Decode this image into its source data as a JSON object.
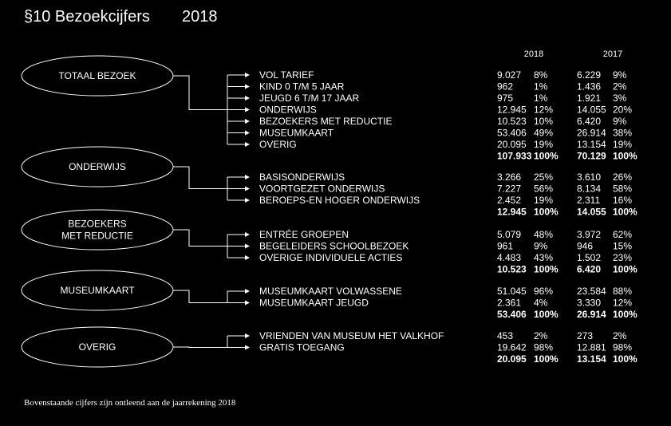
{
  "title": "§10 Bezoekcijfers",
  "year": "2018",
  "columns": {
    "current": "2018",
    "previous": "2017"
  },
  "groups": [
    {
      "label_lines": [
        "TOTAAL BEZOEK"
      ],
      "rows": [
        {
          "label": "VOL TARIEF",
          "v2018": "9.027",
          "p2018": "8%",
          "v2017": "6.229",
          "p2017": "9%"
        },
        {
          "label": "KIND 0 T/M 5 JAAR",
          "v2018": "962",
          "p2018": "1%",
          "v2017": "1.436",
          "p2017": "2%"
        },
        {
          "label": "JEUGD 6 T/M 17 JAAR",
          "v2018": "975",
          "p2018": "1%",
          "v2017": "1.921",
          "p2017": "3%"
        },
        {
          "label": "ONDERWIJS",
          "v2018": "12.945",
          "p2018": "12%",
          "v2017": "14.055",
          "p2017": "20%"
        },
        {
          "label": "BEZOEKERS MET REDUCTIE",
          "v2018": "10.523",
          "p2018": "10%",
          "v2017": "6.420",
          "p2017": "9%"
        },
        {
          "label": "MUSEUMKAART",
          "v2018": "53.406",
          "p2018": "49%",
          "v2017": "26.914",
          "p2017": "38%"
        },
        {
          "label": "OVERIG",
          "v2018": "20.095",
          "p2018": "19%",
          "v2017": "13.154",
          "p2017": "19%"
        }
      ],
      "total": {
        "v2018": "107.933",
        "p2018": "100%",
        "v2017": "70.129",
        "p2017": "100%"
      }
    },
    {
      "label_lines": [
        "ONDERWIJS"
      ],
      "rows": [
        {
          "label": "BASISONDERWIJS",
          "v2018": "3.266",
          "p2018": "25%",
          "v2017": "3.610",
          "p2017": "26%"
        },
        {
          "label": "VOORTGEZET ONDERWIJS",
          "v2018": "7.227",
          "p2018": "56%",
          "v2017": "8.134",
          "p2017": "58%"
        },
        {
          "label": "BEROEPS-EN HOGER ONDERWIJS",
          "v2018": "2.452",
          "p2018": "19%",
          "v2017": "2.311",
          "p2017": "16%"
        }
      ],
      "total": {
        "v2018": "12.945",
        "p2018": "100%",
        "v2017": "14.055",
        "p2017": "100%"
      }
    },
    {
      "label_lines": [
        "BEZOEKERS",
        "MET REDUCTIE"
      ],
      "rows": [
        {
          "label": "ENTRÉE GROEPEN",
          "v2018": "5.079",
          "p2018": "48%",
          "v2017": "3.972",
          "p2017": "62%"
        },
        {
          "label": "BEGELEIDERS SCHOOLBEZOEK",
          "v2018": "961",
          "p2018": "9%",
          "v2017": "946",
          "p2017": "15%"
        },
        {
          "label": "OVERIGE INDIVIDUELE ACTIES",
          "v2018": "4.483",
          "p2018": "43%",
          "v2017": "1.502",
          "p2017": "23%"
        }
      ],
      "total": {
        "v2018": "10.523",
        "p2018": "100%",
        "v2017": "6.420",
        "p2017": "100%"
      }
    },
    {
      "label_lines": [
        "MUSEUMKAART"
      ],
      "rows": [
        {
          "label": "MUSEUMKAART VOLWASSENE",
          "v2018": "51.045",
          "p2018": "96%",
          "v2017": "23.584",
          "p2017": "88%"
        },
        {
          "label": "MUSEUMKAART JEUGD",
          "v2018": "2.361",
          "p2018": "4%",
          "v2017": "3.330",
          "p2017": "12%"
        }
      ],
      "total": {
        "v2018": "53.406",
        "p2018": "100%",
        "v2017": "26.914",
        "p2017": "100%"
      }
    },
    {
      "label_lines": [
        "OVERIG"
      ],
      "rows": [
        {
          "label": "VRIENDEN VAN MUSEUM HET VALKHOF",
          "v2018": "453",
          "p2018": "2%",
          "v2017": "273",
          "p2017": "2%"
        },
        {
          "label": "GRATIS TOEGANG",
          "v2018": "19.642",
          "p2018": "98%",
          "v2017": "12.881",
          "p2017": "98%"
        }
      ],
      "total": {
        "v2018": "20.095",
        "p2018": "100%",
        "v2017": "13.154",
        "p2017": "100%"
      }
    }
  ],
  "footnote": "Bovenstaande cijfers zijn ontleend aan de jaarrekening 2018"
}
